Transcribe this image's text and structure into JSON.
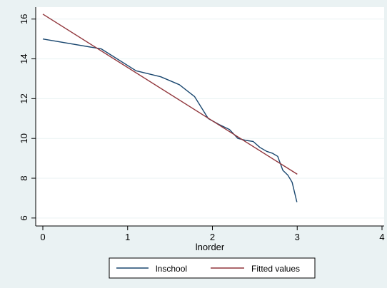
{
  "chart_data": {
    "type": "line",
    "xlabel": "lnorder",
    "ylabel": "",
    "xlim": [
      0,
      4
    ],
    "ylim": [
      5.6,
      16.6
    ],
    "x_ticks": [
      0,
      1,
      2,
      3,
      4
    ],
    "y_ticks": [
      6,
      8,
      10,
      12,
      14,
      16
    ],
    "grid": "horizontal",
    "legend_position": "bottom",
    "series": [
      {
        "name": "lnschool",
        "color": "#1a476f",
        "points": [
          [
            0,
            15.0
          ],
          [
            0.69,
            14.5
          ],
          [
            1.1,
            13.4
          ],
          [
            1.39,
            13.1
          ],
          [
            1.61,
            12.7
          ],
          [
            1.79,
            12.1
          ],
          [
            1.95,
            11.0
          ],
          [
            2.08,
            10.7
          ],
          [
            2.2,
            10.45
          ],
          [
            2.3,
            10.0
          ],
          [
            2.4,
            9.9
          ],
          [
            2.48,
            9.85
          ],
          [
            2.56,
            9.55
          ],
          [
            2.64,
            9.35
          ],
          [
            2.71,
            9.25
          ],
          [
            2.77,
            9.1
          ],
          [
            2.83,
            8.4
          ],
          [
            2.89,
            8.15
          ],
          [
            2.94,
            7.8
          ],
          [
            2.996,
            6.8
          ]
        ]
      },
      {
        "name": "Fitted values",
        "color": "#90353b",
        "points": [
          [
            0,
            16.25
          ],
          [
            3.0,
            8.2
          ]
        ]
      }
    ]
  }
}
